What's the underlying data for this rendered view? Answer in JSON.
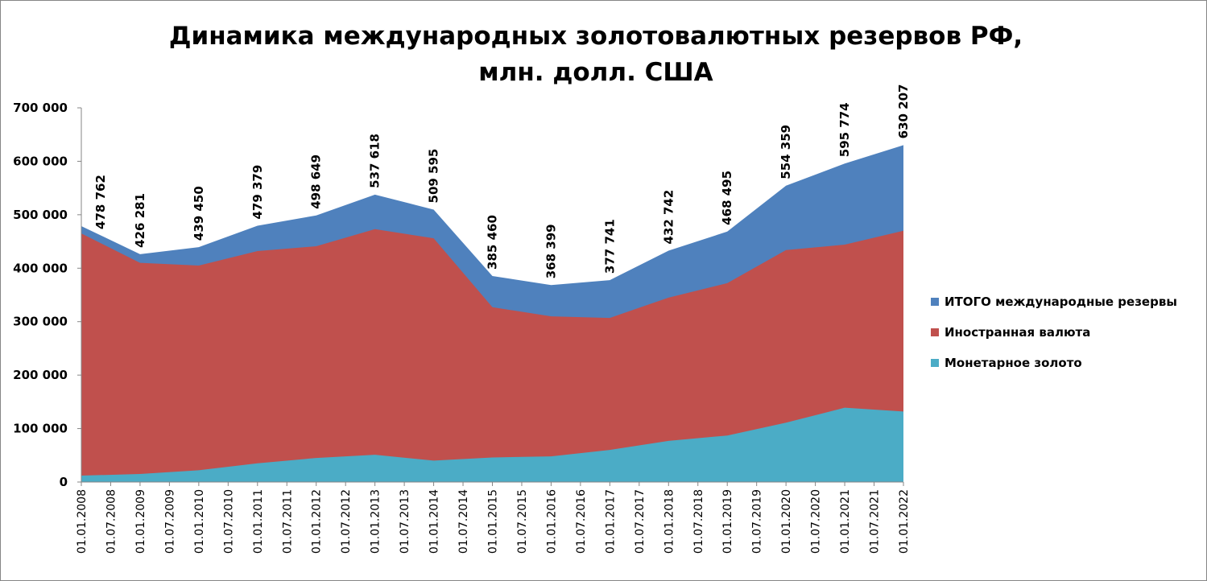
{
  "chart_data": {
    "type": "area",
    "title_line1": "Динамика международных  золотовалютных резервов РФ,",
    "title_line2": "млн. долл. США",
    "xlabel": "",
    "ylabel": "",
    "ylim": [
      0,
      700000
    ],
    "y_ticks": [
      "0",
      "100 000",
      "200 000",
      "300 000",
      "400 000",
      "500 000",
      "600 000",
      "700 000"
    ],
    "x_ticks": [
      "01.01.2008",
      "01.07.2008",
      "01.01.2009",
      "01.07.2009",
      "01.01.2010",
      "01.07.2010",
      "01.01.2011",
      "01.07.2011",
      "01.01.2012",
      "01.07.2012",
      "01.01.2013",
      "01.07.2013",
      "01.01.2014",
      "01.07.2014",
      "01.01.2015",
      "01.07.2015",
      "01.01.2016",
      "01.07.2016",
      "01.01.2017",
      "01.07.2017",
      "01.01.2018",
      "01.07.2018",
      "01.01.2019",
      "01.07.2019",
      "01.01.2020",
      "01.07.2020",
      "01.01.2021",
      "01.07.2021",
      "01.01.2022"
    ],
    "categories": [
      "01.01.2008",
      "01.01.2009",
      "01.01.2010",
      "01.01.2011",
      "01.01.2012",
      "01.01.2013",
      "01.01.2014",
      "01.01.2015",
      "01.01.2016",
      "01.01.2017",
      "01.01.2018",
      "01.01.2019",
      "01.01.2020",
      "01.01.2021",
      "01.01.2022"
    ],
    "series": [
      {
        "name": "ИТОГО международные резервы",
        "color": "#4F81BD",
        "values": [
          478762,
          426281,
          439450,
          479379,
          498649,
          537618,
          509595,
          385460,
          368399,
          377741,
          432742,
          468495,
          554359,
          595774,
          630207
        ],
        "data_labels": [
          "478 762",
          "426 281",
          "439 450",
          "479 379",
          "498 649",
          "537 618",
          "509 595",
          "385 460",
          "368 399",
          "377 741",
          "432 742",
          "468 495",
          "554 359",
          "595 774",
          "630 207"
        ]
      },
      {
        "name": "Иностранная валюта",
        "color": "#C0504D",
        "values": [
          465000,
          410000,
          405000,
          432000,
          441000,
          473000,
          456000,
          327000,
          310000,
          307000,
          345000,
          372000,
          434000,
          444000,
          470000
        ]
      },
      {
        "name": "Монетарное золото",
        "color": "#4BACC6",
        "values": [
          12000,
          15000,
          22000,
          35000,
          45000,
          51000,
          40000,
          46000,
          48000,
          60000,
          77000,
          87000,
          111000,
          139000,
          132000
        ]
      }
    ],
    "legend_position": "right",
    "grid": false
  }
}
